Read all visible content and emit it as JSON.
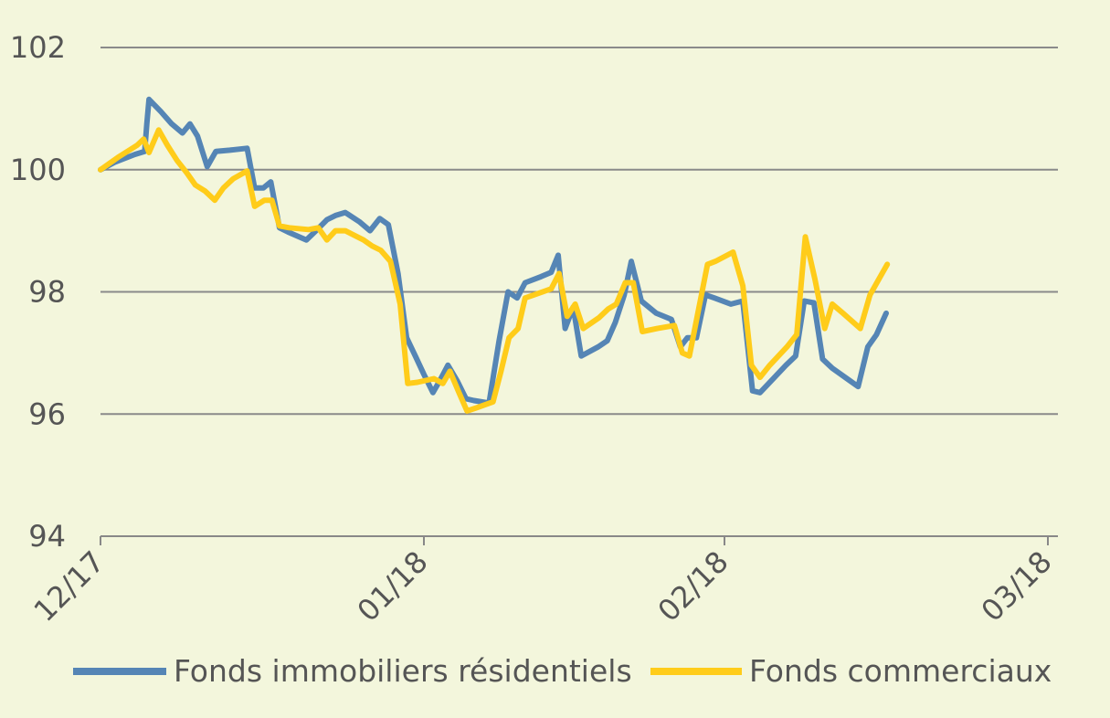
{
  "chart_data": {
    "type": "line",
    "title": "",
    "xlabel": "",
    "ylabel": "",
    "ylim": [
      94,
      102
    ],
    "yticks": [
      "94",
      "96",
      "98",
      "100",
      "102"
    ],
    "xticks": [
      "12/17",
      "01/18",
      "02/18",
      "03/18"
    ],
    "grid": true,
    "legend_position": "bottom",
    "background": "#f3f6dc",
    "x_unit": "days since 12/17 tick",
    "series": [
      {
        "name": "Fonds immobiliers résidentiels",
        "color": "#5585b5",
        "points": [
          [
            0,
            100.0
          ],
          [
            1.3,
            100.12
          ],
          [
            3.2,
            100.25
          ],
          [
            4.1,
            100.3
          ],
          [
            4.3,
            100.75
          ],
          [
            4.5,
            101.15
          ],
          [
            5.6,
            100.95
          ],
          [
            6.6,
            100.75
          ],
          [
            7.6,
            100.6
          ],
          [
            8.3,
            100.75
          ],
          [
            9.0,
            100.55
          ],
          [
            9.9,
            100.05
          ],
          [
            10.7,
            100.3
          ],
          [
            12.0,
            100.32
          ],
          [
            13.6,
            100.35
          ],
          [
            14.3,
            99.7
          ],
          [
            15.1,
            99.7
          ],
          [
            15.8,
            99.8
          ],
          [
            16.6,
            99.05
          ],
          [
            17.4,
            98.98
          ],
          [
            19.1,
            98.85
          ],
          [
            20.1,
            99.02
          ],
          [
            21.0,
            99.18
          ],
          [
            21.8,
            99.25
          ],
          [
            22.7,
            99.3
          ],
          [
            24.0,
            99.15
          ],
          [
            25.0,
            99.0
          ],
          [
            25.9,
            99.2
          ],
          [
            26.7,
            99.1
          ],
          [
            27.6,
            98.3
          ],
          [
            28.4,
            97.25
          ],
          [
            29.2,
            96.95
          ],
          [
            30.0,
            96.65
          ],
          [
            30.9,
            96.35
          ],
          [
            31.6,
            96.55
          ],
          [
            32.4,
            96.8
          ],
          [
            33.3,
            96.55
          ],
          [
            34.2,
            96.25
          ],
          [
            35.0,
            96.22
          ],
          [
            36.5,
            96.18
          ],
          [
            37.5,
            97.2
          ],
          [
            38.4,
            98.0
          ],
          [
            39.3,
            97.9
          ],
          [
            40.1,
            98.15
          ],
          [
            41.7,
            98.25
          ],
          [
            42.7,
            98.32
          ],
          [
            43.4,
            98.6
          ],
          [
            44.1,
            97.4
          ],
          [
            44.9,
            97.75
          ],
          [
            45.7,
            96.95
          ],
          [
            47.4,
            97.1
          ],
          [
            48.3,
            97.2
          ],
          [
            49.1,
            97.5
          ],
          [
            50.0,
            97.95
          ],
          [
            50.7,
            98.5
          ],
          [
            51.7,
            97.85
          ],
          [
            53.2,
            97.65
          ],
          [
            54.7,
            97.55
          ],
          [
            55.6,
            97.1
          ],
          [
            56.3,
            97.25
          ],
          [
            57.2,
            97.25
          ],
          [
            58.1,
            97.95
          ],
          [
            59.0,
            97.9
          ],
          [
            60.6,
            97.8
          ],
          [
            61.7,
            97.85
          ],
          [
            62.6,
            96.38
          ],
          [
            63.3,
            96.35
          ],
          [
            64.1,
            96.5
          ],
          [
            65.7,
            96.8
          ],
          [
            66.6,
            96.95
          ],
          [
            67.4,
            97.85
          ],
          [
            68.3,
            97.82
          ],
          [
            69.1,
            96.9
          ],
          [
            70.0,
            96.75
          ],
          [
            71.6,
            96.55
          ],
          [
            72.4,
            96.45
          ],
          [
            73.3,
            97.1
          ],
          [
            74.1,
            97.3
          ],
          [
            75.0,
            97.65
          ]
        ]
      },
      {
        "name": "Fonds commerciaux",
        "color": "#ffcc1a",
        "points": [
          [
            0,
            100.0
          ],
          [
            1.6,
            100.2
          ],
          [
            3.4,
            100.4
          ],
          [
            4.0,
            100.5
          ],
          [
            4.5,
            100.28
          ],
          [
            5.4,
            100.65
          ],
          [
            6.2,
            100.4
          ],
          [
            7.1,
            100.15
          ],
          [
            8.0,
            99.95
          ],
          [
            8.8,
            99.75
          ],
          [
            9.7,
            99.65
          ],
          [
            10.6,
            99.5
          ],
          [
            11.4,
            99.7
          ],
          [
            12.3,
            99.85
          ],
          [
            13.6,
            99.98
          ],
          [
            14.3,
            99.4
          ],
          [
            15.2,
            99.5
          ],
          [
            15.9,
            99.5
          ],
          [
            16.6,
            99.08
          ],
          [
            17.5,
            99.05
          ],
          [
            19.3,
            99.02
          ],
          [
            20.2,
            99.05
          ],
          [
            21.0,
            98.85
          ],
          [
            21.8,
            99.0
          ],
          [
            22.7,
            99.0
          ],
          [
            24.4,
            98.85
          ],
          [
            25.2,
            98.75
          ],
          [
            26.0,
            98.68
          ],
          [
            26.9,
            98.5
          ],
          [
            27.8,
            97.8
          ],
          [
            28.5,
            96.5
          ],
          [
            29.4,
            96.52
          ],
          [
            31.0,
            96.58
          ],
          [
            31.9,
            96.5
          ],
          [
            32.6,
            96.7
          ],
          [
            33.5,
            96.35
          ],
          [
            34.3,
            96.05
          ],
          [
            35.2,
            96.1
          ],
          [
            36.9,
            96.2
          ],
          [
            37.7,
            96.7
          ],
          [
            38.5,
            97.25
          ],
          [
            39.4,
            97.4
          ],
          [
            40.1,
            97.9
          ],
          [
            41.0,
            97.95
          ],
          [
            42.7,
            98.05
          ],
          [
            43.5,
            98.3
          ],
          [
            44.3,
            97.6
          ],
          [
            45.1,
            97.8
          ],
          [
            45.9,
            97.4
          ],
          [
            47.5,
            97.58
          ],
          [
            48.4,
            97.72
          ],
          [
            49.2,
            97.8
          ],
          [
            50.1,
            98.15
          ],
          [
            50.9,
            98.15
          ],
          [
            51.8,
            97.35
          ],
          [
            53.3,
            97.4
          ],
          [
            55.0,
            97.45
          ],
          [
            55.8,
            97.0
          ],
          [
            56.5,
            96.95
          ],
          [
            58.3,
            98.45
          ],
          [
            59.1,
            98.5
          ],
          [
            60.8,
            98.65
          ],
          [
            61.7,
            98.1
          ],
          [
            62.5,
            96.8
          ],
          [
            63.3,
            96.6
          ],
          [
            64.2,
            96.8
          ],
          [
            65.8,
            97.1
          ],
          [
            66.7,
            97.3
          ],
          [
            67.5,
            98.9
          ],
          [
            68.4,
            98.2
          ],
          [
            69.3,
            97.4
          ],
          [
            70.0,
            97.8
          ],
          [
            71.0,
            97.65
          ],
          [
            72.6,
            97.4
          ],
          [
            73.5,
            97.95
          ],
          [
            74.3,
            98.2
          ],
          [
            75.1,
            98.45
          ]
        ]
      }
    ]
  }
}
